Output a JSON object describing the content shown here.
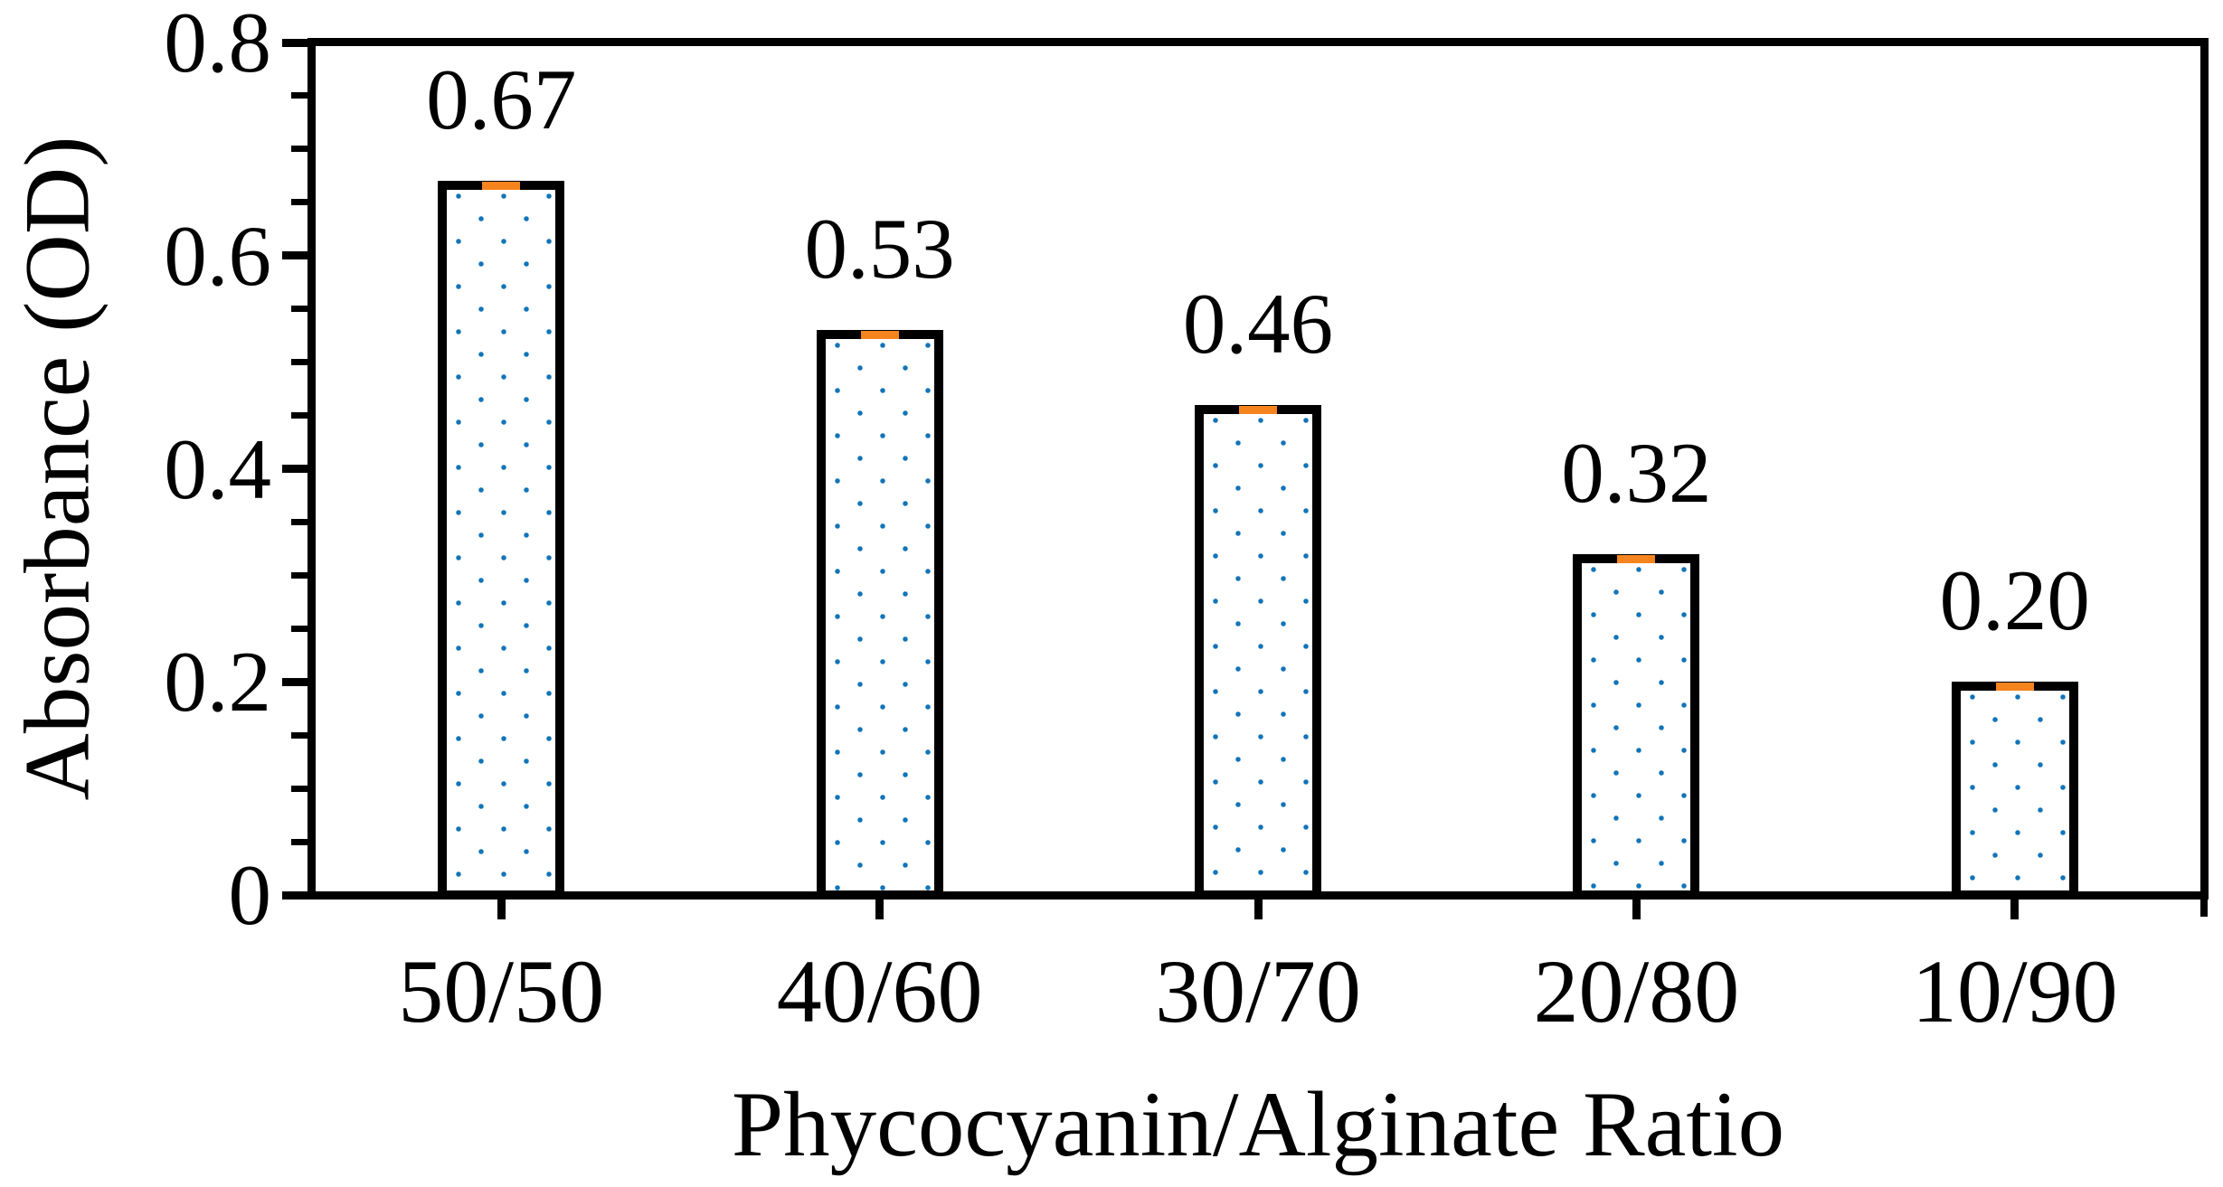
{
  "chart_data": {
    "type": "bar",
    "title": "",
    "xlabel": "Phycocyanin/Alginate Ratio",
    "ylabel": "Absorbance (OD)",
    "categories": [
      "50/50",
      "40/60",
      "30/70",
      "20/80",
      "10/90"
    ],
    "values": [
      0.67,
      0.53,
      0.46,
      0.32,
      0.2
    ],
    "bar_value_labels": [
      "0.67",
      "0.53",
      "0.46",
      "0.32",
      "0.20"
    ],
    "ylim": [
      0,
      0.8
    ],
    "y_major_ticks": [
      0,
      0.2,
      0.4,
      0.6,
      0.8
    ],
    "y_tick_labels": [
      "0",
      "0.2",
      "0.4",
      "0.6",
      "0.8"
    ],
    "y_minor_tick_step": 0.05,
    "grid": false,
    "legend": false,
    "error_bars": "small orange cap centered on each bar top",
    "bar_style": {
      "fill": "#ffffff",
      "dot_color": "#1174b8",
      "dot_pattern": "staggered-square-dots",
      "border_color": "#000000",
      "error_cap_color": "#f6841e"
    },
    "axis_color": "#000000",
    "text_color": "#000000",
    "background_color": "#ffffff"
  }
}
